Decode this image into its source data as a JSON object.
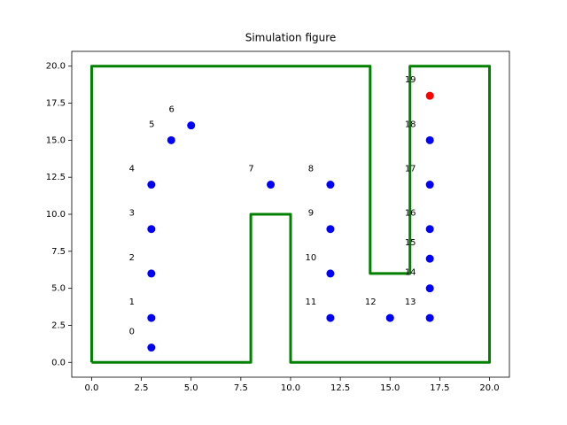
{
  "chart_data": {
    "type": "scatter",
    "title": "Simulation figure",
    "xlim": [
      -1,
      21
    ],
    "ylim": [
      -1,
      21
    ],
    "xticks": [
      {
        "value": 0,
        "label": "0.0"
      },
      {
        "value": 2.5,
        "label": "2.5"
      },
      {
        "value": 5,
        "label": "5.0"
      },
      {
        "value": 7.5,
        "label": "7.5"
      },
      {
        "value": 10,
        "label": "10.0"
      },
      {
        "value": 12.5,
        "label": "12.5"
      },
      {
        "value": 15,
        "label": "15.0"
      },
      {
        "value": 17.5,
        "label": "17.5"
      },
      {
        "value": 20,
        "label": "20.0"
      }
    ],
    "yticks": [
      {
        "value": 0,
        "label": "0.0"
      },
      {
        "value": 2.5,
        "label": "2.5"
      },
      {
        "value": 5,
        "label": "5.0"
      },
      {
        "value": 7.5,
        "label": "7.5"
      },
      {
        "value": 10,
        "label": "10.0"
      },
      {
        "value": 12.5,
        "label": "12.5"
      },
      {
        "value": 15,
        "label": "15.0"
      },
      {
        "value": 17.5,
        "label": "17.5"
      },
      {
        "value": 20,
        "label": "20.0"
      }
    ],
    "boundary": {
      "color": "#008000",
      "x": [
        0,
        0,
        14,
        14,
        16,
        16,
        20,
        20,
        10,
        10,
        8,
        8,
        0
      ],
      "y": [
        0,
        20,
        20,
        6,
        6,
        20,
        20,
        0,
        0,
        10,
        10,
        0,
        0
      ]
    },
    "points": {
      "x": [
        3,
        3,
        3,
        3,
        3,
        4,
        5,
        9,
        12,
        12,
        12,
        12,
        15,
        17,
        17,
        17,
        17,
        17,
        17,
        17
      ],
      "y": [
        1,
        3,
        6,
        9,
        12,
        15,
        16,
        12,
        12,
        9,
        6,
        3,
        3,
        3,
        5,
        7,
        9,
        12,
        15,
        18
      ],
      "labels": [
        "0",
        "1",
        "2",
        "3",
        "4",
        "5",
        "6",
        "7",
        "8",
        "9",
        "10",
        "11",
        "12",
        "13",
        "14",
        "15",
        "16",
        "17",
        "18",
        "19"
      ],
      "colors": [
        "#0000ff",
        "#0000ff",
        "#0000ff",
        "#0000ff",
        "#0000ff",
        "#0000ff",
        "#0000ff",
        "#0000ff",
        "#0000ff",
        "#0000ff",
        "#0000ff",
        "#0000ff",
        "#0000ff",
        "#0000ff",
        "#0000ff",
        "#0000ff",
        "#0000ff",
        "#0000ff",
        "#0000ff",
        "#ff0000"
      ]
    }
  }
}
